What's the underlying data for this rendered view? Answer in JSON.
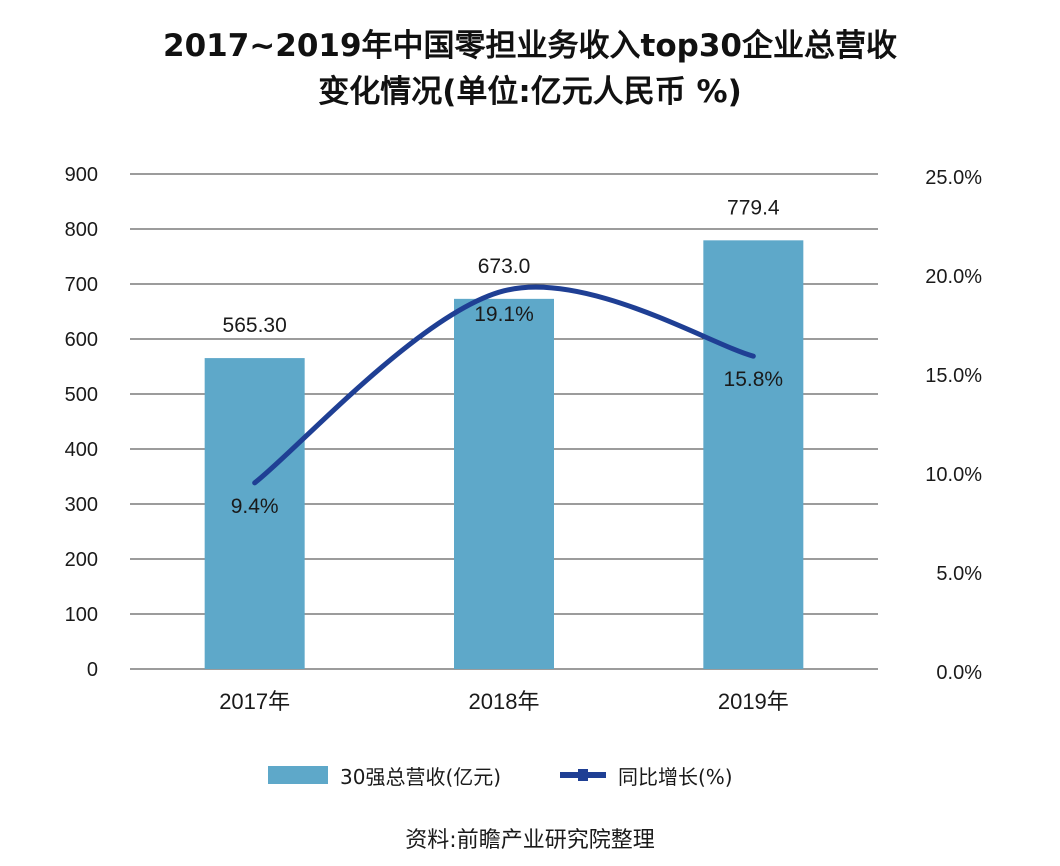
{
  "title_line1": "2017~2019年中国零担业务收入top30企业总营收",
  "title_line2": "变化情况(单位:亿元人民币 %)",
  "source": "资料:前瞻产业研究院整理",
  "colors": {
    "bar": "#5ea8c9",
    "line": "#1f3f94",
    "grid": "#3a3a3a",
    "text": "#1a1a1a"
  },
  "legend": {
    "bar_label": "30强总营收(亿元)",
    "line_label": "同比增长(%)"
  },
  "chart_data": {
    "type": "bar",
    "categories": [
      "2017年",
      "2018年",
      "2019年"
    ],
    "series": [
      {
        "name": "30强总营收(亿元)",
        "type": "bar",
        "axis": "left",
        "values": [
          565.3,
          673.0,
          779.4
        ],
        "labels": [
          "565.30",
          "673.0",
          "779.4"
        ]
      },
      {
        "name": "同比增长(%)",
        "type": "line",
        "axis": "right",
        "values": [
          9.4,
          19.1,
          15.8
        ],
        "labels": [
          "9.4%",
          "19.1%",
          "15.8%"
        ]
      }
    ],
    "y_left": {
      "ylim": [
        0,
        900
      ],
      "ticks": [
        "0",
        "100",
        "200",
        "300",
        "400",
        "500",
        "600",
        "700",
        "800",
        "900"
      ]
    },
    "y_right": {
      "ylim": [
        0,
        25
      ],
      "ticks": [
        "0.0%",
        "5.0%",
        "10.0%",
        "15.0%",
        "20.0%",
        "25.0%"
      ]
    },
    "grid": true,
    "legend_position": "bottom"
  }
}
